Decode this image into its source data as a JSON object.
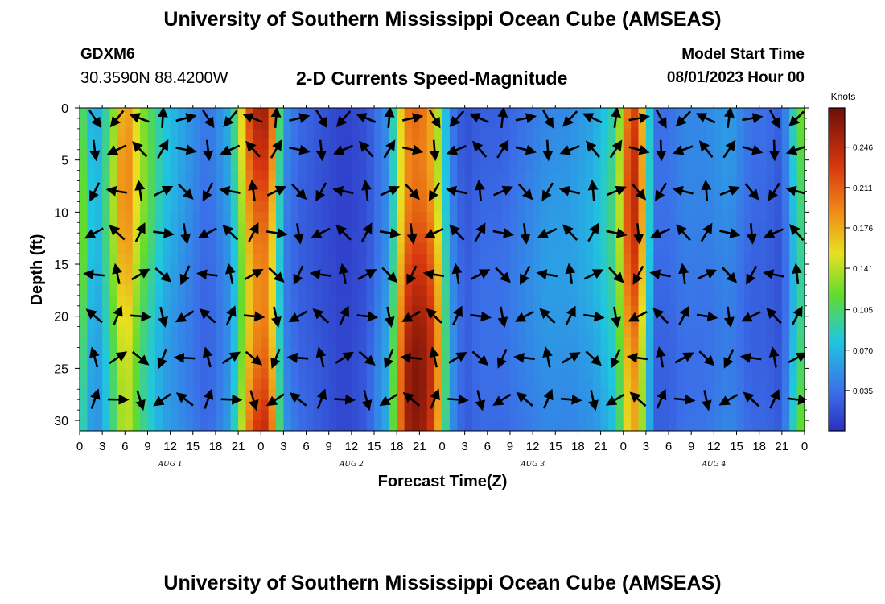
{
  "header": {
    "title": "University of Southern Mississippi Ocean Cube (AMSEAS)",
    "station": "GDXM6",
    "coords": "30.3590N  88.4200W",
    "subtitle": "2-D Currents Speed-Magnitude",
    "start_label": "Model Start Time",
    "start_value": "08/01/2023 Hour 00"
  },
  "footer": {
    "title": "University of Southern Mississippi Ocean Cube (AMSEAS)"
  },
  "chart_data": {
    "type": "heatmap",
    "title": "2-D Currents Speed-Magnitude",
    "xlabel": "Forecast Time(Z)",
    "ylabel": "Depth (ft)",
    "xlim": [
      0,
      96
    ],
    "ylim": [
      0,
      31
    ],
    "x_tick_labels": [
      "0",
      "3",
      "6",
      "9",
      "12",
      "15",
      "18",
      "21",
      "0",
      "3",
      "6",
      "9",
      "12",
      "15",
      "18",
      "21",
      "0",
      "3",
      "6",
      "9",
      "12",
      "15",
      "18",
      "21",
      "0",
      "3",
      "6",
      "9",
      "12",
      "15",
      "18",
      "21",
      "0"
    ],
    "day_labels": [
      "AUG 1",
      "AUG 2",
      "AUG 3",
      "AUG 4"
    ],
    "y_ticks": [
      0,
      5,
      10,
      15,
      20,
      25,
      30
    ],
    "colorbar": {
      "unit": "Knots",
      "ticks": [
        "0.246",
        "0.211",
        "0.176",
        "0.141",
        "0.105",
        "0.070",
        "0.035"
      ],
      "range": [
        0,
        0.28
      ]
    },
    "vector_depths_ft": [
      1,
      4,
      8,
      12,
      16,
      20,
      24,
      28
    ],
    "speed_profile": {
      "hours": [
        0,
        2,
        4,
        6,
        8,
        11,
        14,
        17,
        20,
        23,
        25,
        27,
        29,
        32,
        35,
        38,
        41,
        43,
        45,
        47,
        49,
        51,
        53,
        56,
        59,
        62,
        65,
        68,
        71,
        73,
        74,
        76,
        78,
        80,
        83,
        86,
        89,
        91,
        93,
        95,
        96
      ],
      "speed": [
        0.12,
        0.05,
        0.1,
        0.18,
        0.12,
        0.07,
        0.05,
        0.03,
        0.06,
        0.22,
        0.23,
        0.05,
        0.03,
        0.02,
        0.01,
        0.02,
        0.06,
        0.22,
        0.24,
        0.2,
        0.05,
        0.02,
        0.03,
        0.03,
        0.04,
        0.05,
        0.05,
        0.06,
        0.09,
        0.22,
        0.2,
        0.03,
        0.03,
        0.04,
        0.04,
        0.05,
        0.03,
        0.03,
        0.02,
        0.1,
        0.12
      ]
    }
  }
}
